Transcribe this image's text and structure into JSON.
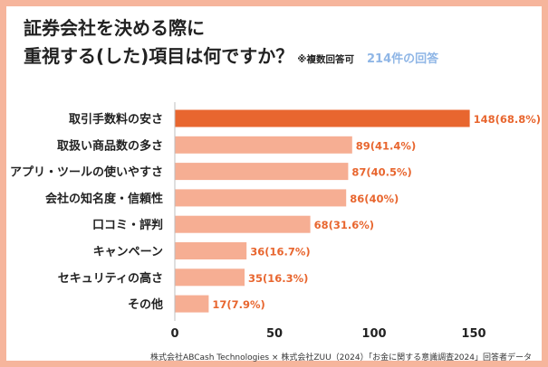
{
  "title": {
    "line1": "証券会社を決める際に",
    "line2": "重視する(した)項目は何ですか？",
    "note": "※複数回答可",
    "respondents": "214件の回答"
  },
  "source": "株式会社ABCash Technologies × 株式会社ZUU（2024）「お金に関する意識調査2024」回答者データ",
  "colors": {
    "highlight": "#e8662f",
    "bar": "#f6ae93",
    "value_label": "#e8662f"
  },
  "chart_data": {
    "type": "bar",
    "orientation": "horizontal",
    "categories": [
      "取引手数料の安さ",
      "取扱い商品数の多さ",
      "アプリ・ツールの使いやすさ",
      "会社の知名度・信頼性",
      "口コミ・評判",
      "キャンペーン",
      "セキュリティの高さ",
      "その他"
    ],
    "values": [
      148,
      89,
      87,
      86,
      68,
      36,
      35,
      17
    ],
    "value_labels": [
      "148(68.8%)",
      "89(41.4%)",
      "87(40.5%)",
      "86(40%)",
      "68(31.6%)",
      "36(16.7%)",
      "35(16.3%)",
      "17(7.9%)"
    ],
    "xlim": [
      0,
      150
    ],
    "xticks": [
      0,
      50,
      100,
      150
    ],
    "tick_labels": [
      "0",
      "50",
      "100",
      "150"
    ],
    "highlight_index": 0,
    "grid": false,
    "legend": "none"
  }
}
